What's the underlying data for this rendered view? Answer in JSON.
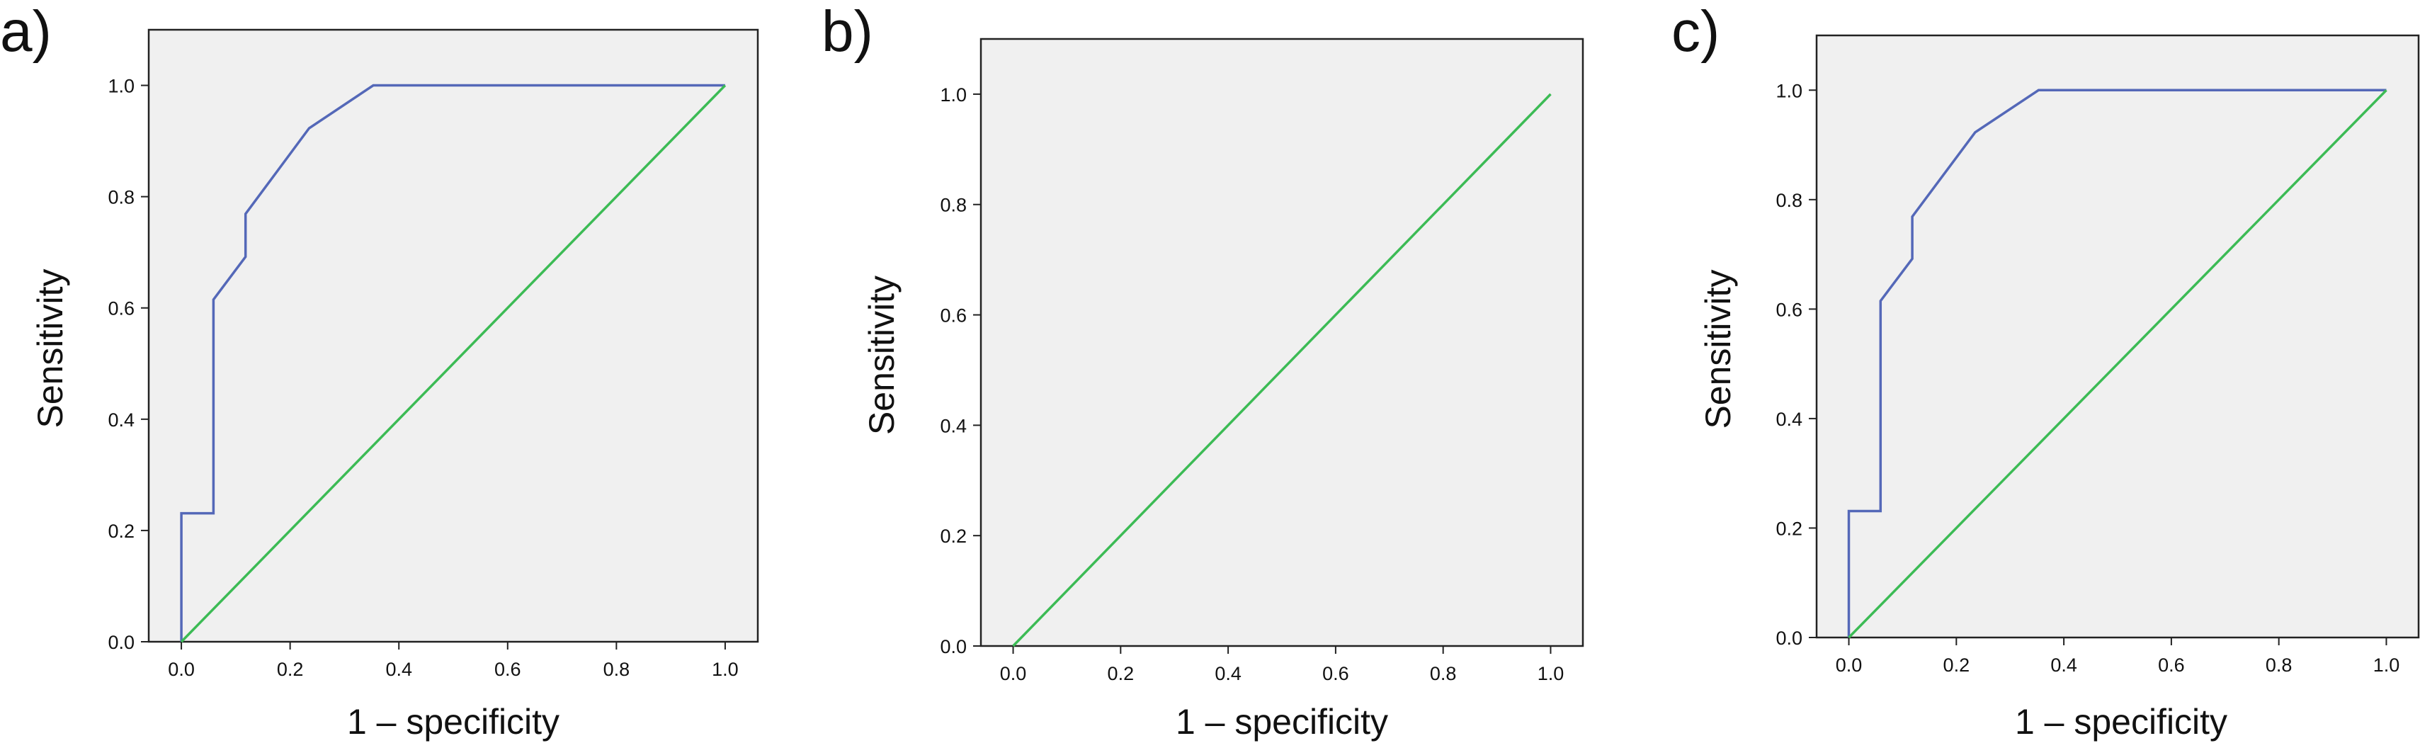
{
  "colors": {
    "roc_curve": "#5468b8",
    "reference_line": "#3cbb55",
    "plot_background": "#f0f0f0",
    "frame": "#222222"
  },
  "chart_data": [
    {
      "type": "line",
      "panel_label": "a)",
      "xlabel": "1 – specificity",
      "ylabel": "Sensitivity",
      "xlim": [
        -0.06,
        1.06
      ],
      "ylim": [
        0,
        1.1
      ],
      "x_ticks": [
        "0.0",
        "0.2",
        "0.4",
        "0.6",
        "0.8",
        "1.0"
      ],
      "y_ticks": [
        "0.0",
        "0.2",
        "0.4",
        "0.6",
        "0.8",
        "1.0"
      ],
      "grid": false,
      "series": [
        {
          "role": "roc",
          "x": [
            0,
            0,
            0.059,
            0.059,
            0.118,
            0.118,
            0.235,
            0.353,
            1.0
          ],
          "y": [
            0,
            0.231,
            0.231,
            0.615,
            0.692,
            0.769,
            0.923,
            1.0,
            1.0
          ]
        },
        {
          "role": "reference",
          "x": [
            0,
            1
          ],
          "y": [
            0,
            1
          ]
        }
      ]
    },
    {
      "type": "line",
      "panel_label": "b)",
      "xlabel": "1 – specificity",
      "ylabel": "Sensitivity",
      "xlim": [
        -0.06,
        1.06
      ],
      "ylim": [
        0,
        1.1
      ],
      "x_ticks": [
        "0.0",
        "0.2",
        "0.4",
        "0.6",
        "0.8",
        "1.0"
      ],
      "y_ticks": [
        "0.0",
        "0.2",
        "0.4",
        "0.6",
        "0.8",
        "1.0"
      ],
      "grid": false,
      "series": [
        {
          "role": "reference",
          "x": [
            0,
            1
          ],
          "y": [
            0,
            1
          ]
        }
      ]
    },
    {
      "type": "line",
      "panel_label": "c)",
      "xlabel": "1 – specificity",
      "ylabel": "Sensitivity",
      "xlim": [
        -0.06,
        1.06
      ],
      "ylim": [
        0,
        1.1
      ],
      "x_ticks": [
        "0.0",
        "0.2",
        "0.4",
        "0.6",
        "0.8",
        "1.0"
      ],
      "y_ticks": [
        "0.0",
        "0.2",
        "0.4",
        "0.6",
        "0.8",
        "1.0"
      ],
      "grid": false,
      "series": [
        {
          "role": "roc",
          "x": [
            0,
            0,
            0.059,
            0.059,
            0.118,
            0.118,
            0.235,
            0.353,
            1.0
          ],
          "y": [
            0,
            0.231,
            0.231,
            0.615,
            0.692,
            0.769,
            0.923,
            1.0,
            1.0
          ]
        },
        {
          "role": "reference",
          "x": [
            0,
            1
          ],
          "y": [
            0,
            1
          ]
        }
      ]
    }
  ]
}
